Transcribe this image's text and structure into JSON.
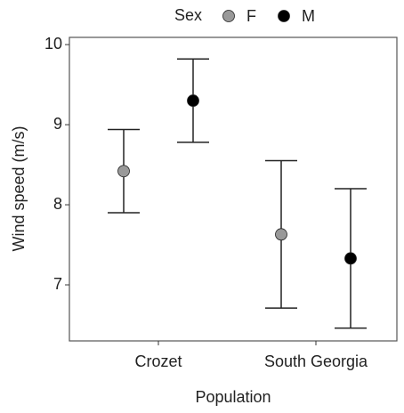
{
  "chart_data": {
    "type": "errorpoint",
    "x_label": "Population",
    "y_label": "Wind speed (m/s)",
    "legend_title": "Sex",
    "legend_position": "top",
    "categories": [
      "Crozet",
      "South Georgia"
    ],
    "series": [
      {
        "name": "F",
        "color": "#999999",
        "values": [
          8.42,
          7.63
        ],
        "error": [
          0.52,
          0.92
        ]
      },
      {
        "name": "M",
        "color": "#000000",
        "values": [
          9.3,
          7.33
        ],
        "error": [
          0.52,
          0.87
        ]
      }
    ],
    "ylim": [
      6.3,
      10.09
    ],
    "yticks": [
      7,
      8,
      9,
      10
    ]
  }
}
